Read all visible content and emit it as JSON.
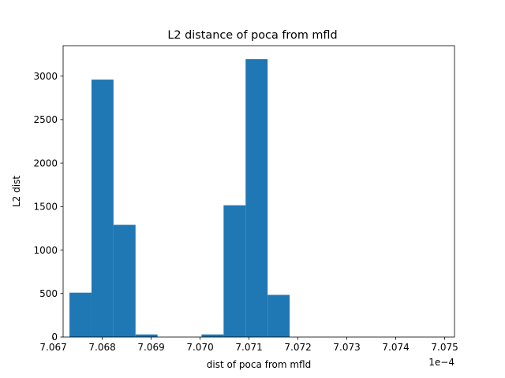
{
  "chart_data": {
    "type": "bar",
    "title": "L2 distance of poca from mfld",
    "xlabel": "dist of poca from mfld",
    "ylabel": "L2 dist",
    "x_offset_text": "1e−4",
    "xlim": [
      7.0672,
      7.0752
    ],
    "ylim": [
      0,
      3350
    ],
    "bin_edges": [
      7.06733,
      7.06778,
      7.06823,
      7.06868,
      7.06913,
      7.06958,
      7.07003,
      7.07048,
      7.07093,
      7.07138,
      7.07183
    ],
    "bins": [
      {
        "x0": 7.06733,
        "x1": 7.06778,
        "value": 510
      },
      {
        "x0": 7.06778,
        "x1": 7.06823,
        "value": 2960
      },
      {
        "x0": 7.06823,
        "x1": 7.06868,
        "value": 1290
      },
      {
        "x0": 7.06868,
        "x1": 7.06913,
        "value": 30
      },
      {
        "x0": 7.06913,
        "x1": 7.06958,
        "value": 0
      },
      {
        "x0": 7.06958,
        "x1": 7.07003,
        "value": 0
      },
      {
        "x0": 7.07003,
        "x1": 7.07048,
        "value": 30
      },
      {
        "x0": 7.07048,
        "x1": 7.07093,
        "value": 1515
      },
      {
        "x0": 7.07093,
        "x1": 7.07138,
        "value": 3195
      },
      {
        "x0": 7.07138,
        "x1": 7.07183,
        "value": 485
      }
    ],
    "x_ticks": [
      7.067,
      7.068,
      7.069,
      7.07,
      7.071,
      7.072,
      7.073,
      7.074,
      7.075
    ],
    "x_tick_labels": [
      "7.067",
      "7.068",
      "7.069",
      "7.070",
      "7.071",
      "7.072",
      "7.073",
      "7.074",
      "7.075"
    ],
    "y_ticks": [
      0,
      500,
      1000,
      1500,
      2000,
      2500,
      3000
    ],
    "y_tick_labels": [
      "0",
      "500",
      "1000",
      "1500",
      "2000",
      "2500",
      "3000"
    ],
    "bar_color": "#1f77b4",
    "grid": false,
    "legend": "none"
  }
}
